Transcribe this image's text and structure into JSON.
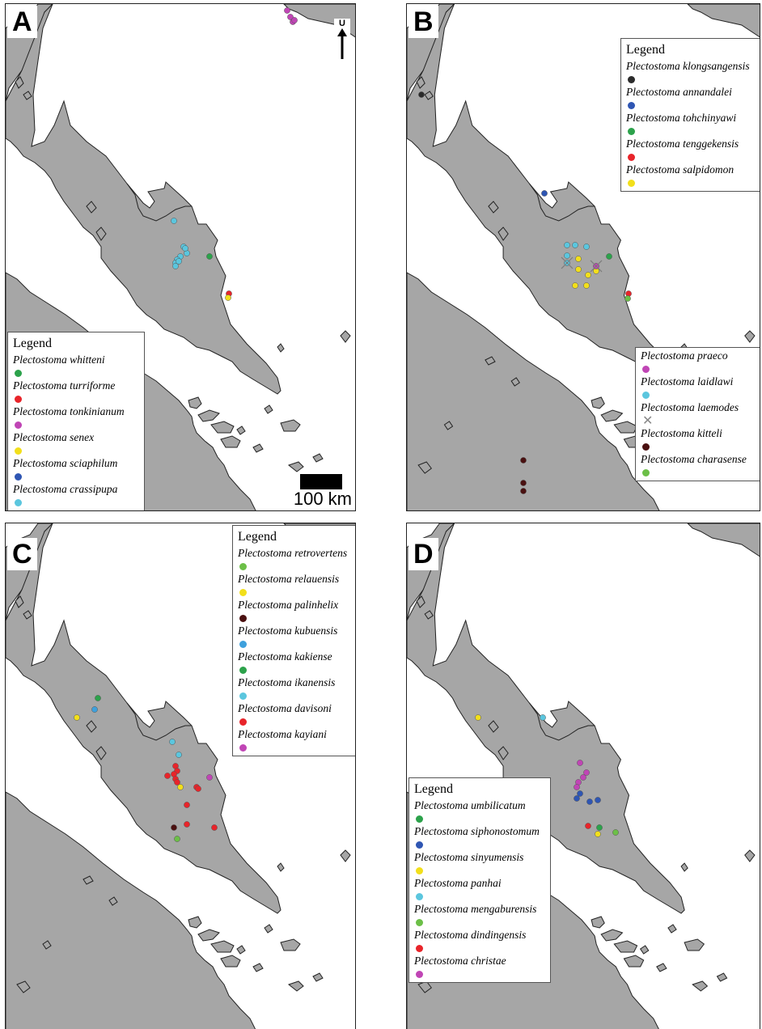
{
  "colors": {
    "land": "#a6a6a6",
    "coast": "#222222",
    "sea": "#ffffff",
    "green": "#2ca24b",
    "red": "#e8242a",
    "magenta": "#c045b5",
    "yellow": "#f2df1b",
    "blue": "#2f56b3",
    "cyan": "#5bc6de",
    "black": "#2b2b2b",
    "maroon": "#4a1010",
    "lightgreen": "#6cbf47",
    "lightblue": "#3ea0dc"
  },
  "panels": [
    {
      "label": "A",
      "legend_title": "Legend",
      "legend": [
        {
          "name": "Plectostoma whitteni",
          "color": "green"
        },
        {
          "name": "Plectostoma turriforme",
          "color": "red"
        },
        {
          "name": "Plectostoma tonkinianum",
          "color": "magenta"
        },
        {
          "name": "Plectostoma senex",
          "color": "yellow"
        },
        {
          "name": "Plectostoma sciaphilum",
          "color": "blue"
        },
        {
          "name": "Plectostoma crassipupa",
          "color": "cyan"
        }
      ],
      "scale_label": "100 km",
      "north_label": "U"
    },
    {
      "label": "B",
      "legend_title": "Legend",
      "legend": [
        {
          "name": "Plectostoma klongsangensis",
          "color": "black"
        },
        {
          "name": "Plectostoma annandalei",
          "color": "blue"
        },
        {
          "name": "Plectostoma tohchinyawi",
          "color": "green"
        },
        {
          "name": "Plectostoma tenggekensis",
          "color": "red"
        },
        {
          "name": "Plectostoma salpidomon",
          "color": "yellow"
        }
      ],
      "legend2": [
        {
          "name": "Plectostoma praeco",
          "color": "magenta"
        },
        {
          "name": "Plectostoma laidlawi",
          "color": "cyan"
        },
        {
          "name": "Plectostoma laemodes",
          "marker": "cross"
        },
        {
          "name": "Plectostoma kitteli",
          "color": "maroon"
        },
        {
          "name": "Plectostoma charasense",
          "color": "lightgreen"
        }
      ]
    },
    {
      "label": "C",
      "legend_title": "Legend",
      "legend": [
        {
          "name": "Plectostoma retrovertens",
          "color": "lightgreen"
        },
        {
          "name": "Plectostoma relauensis",
          "color": "yellow"
        },
        {
          "name": "Plectostoma palinhelix",
          "color": "maroon"
        },
        {
          "name": "Plectostoma kubuensis",
          "color": "lightblue"
        },
        {
          "name": "Plectostoma kakiense",
          "color": "green"
        },
        {
          "name": "Plectostoma ikanensis",
          "color": "cyan"
        },
        {
          "name": "Plectostoma davisoni",
          "color": "red"
        },
        {
          "name": "Plectostoma kayiani",
          "color": "magenta"
        }
      ]
    },
    {
      "label": "D",
      "legend_title": "Legend",
      "legend": [
        {
          "name": "Plectostoma umbilicatum",
          "color": "green"
        },
        {
          "name": "Plectostoma siphonostomum",
          "color": "blue"
        },
        {
          "name": "Plectostoma sinyumensis",
          "color": "yellow"
        },
        {
          "name": "Plectostoma panhai",
          "color": "cyan"
        },
        {
          "name": "Plectostoma mengaburensis",
          "color": "lightgreen"
        },
        {
          "name": "Plectostoma dindingensis",
          "color": "red"
        },
        {
          "name": "Plectostoma christae",
          "color": "magenta"
        }
      ]
    }
  ]
}
